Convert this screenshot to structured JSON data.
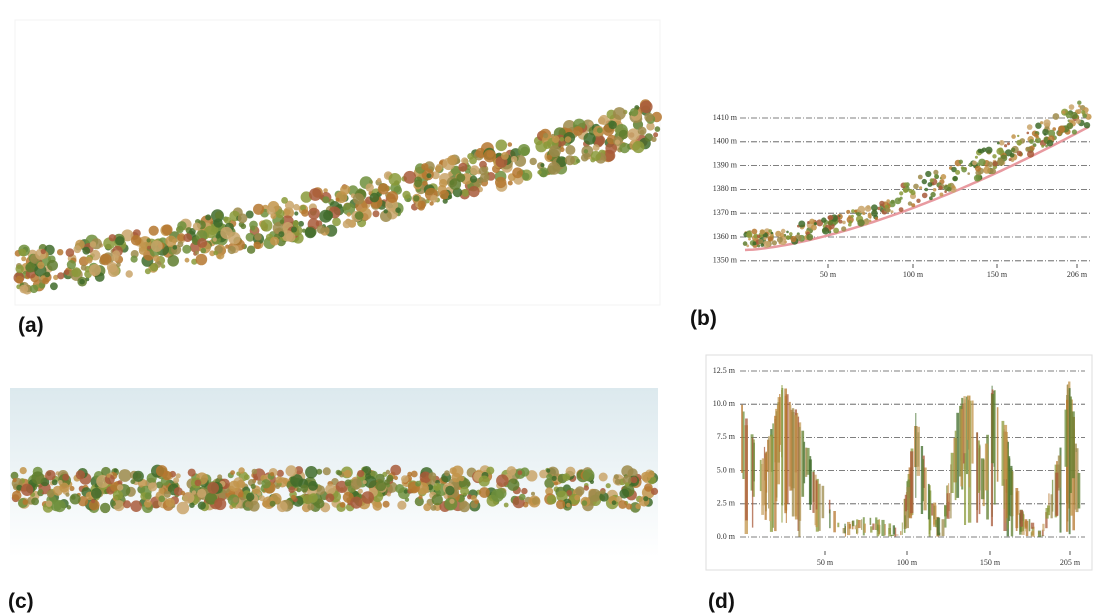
{
  "panels": {
    "a": {
      "label": "(a)"
    },
    "b": {
      "label": "(b)",
      "y_tick_labels": [
        "1410 m",
        "1400 m",
        "1390 m",
        "1380 m",
        "1370 m",
        "1360 m",
        "1350 m"
      ],
      "x_tick_labels": [
        "50 m",
        "100 m",
        "150 m",
        "206 m"
      ]
    },
    "c": {
      "label": "(c)"
    },
    "d": {
      "label": "(d)",
      "y_tick_labels": [
        "12.5 m",
        "10.0 m",
        "7.5 m",
        "5.0 m",
        "2.5 m",
        "0.0 m"
      ],
      "x_tick_labels": [
        "50 m",
        "100 m",
        "150 m",
        "205 m"
      ]
    }
  }
}
